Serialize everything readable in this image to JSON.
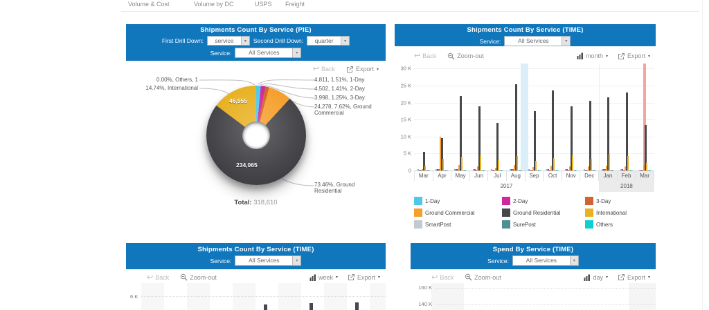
{
  "colors": {
    "header_blue": "#1177BD",
    "highlight_blue_band": "#D9EEF8",
    "highlight_red_band": "#F4A5A0"
  },
  "tabs": {
    "items": [
      {
        "label": "Volume & Cost"
      },
      {
        "label": "Volume by DC"
      },
      {
        "label": "USPS"
      },
      {
        "label": "Freight"
      }
    ]
  },
  "pie_panel": {
    "title": "Shipments Count By Service (PIE)",
    "first_drill_label": "First Drill Down:",
    "first_drill_value": "service",
    "second_drill_label": "Second Drill Down:",
    "second_drill_value": "quarter",
    "service_label": "Service:",
    "service_value": "All Services",
    "back_label": "Back",
    "export_label": "Export",
    "total_label": "Total:",
    "total_value": "318,610"
  },
  "time_panel": {
    "title": "Shipments Count By Service (TIME)",
    "service_label": "Service:",
    "service_value": "All Services",
    "back_label": "Back",
    "zoomout_label": "Zoom-out",
    "interval_label": "month",
    "export_label": "Export"
  },
  "week_panel": {
    "title": "Shipments Count By Service (TIME)",
    "service_label": "Service:",
    "service_value": "All Services",
    "back_label": "Back",
    "zoomout_label": "Zoom-out",
    "interval_label": "week",
    "export_label": "Export",
    "ytick": "6 K"
  },
  "spend_panel": {
    "title": "Spend By Service (TIME)",
    "service_label": "Service:",
    "service_value": "All Services",
    "back_label": "Back",
    "zoomout_label": "Zoom-out",
    "interval_label": "day",
    "export_label": "Export",
    "yticks": [
      "160 K",
      "140 K"
    ]
  },
  "chart_data": [
    {
      "id": "shipments_by_service_pie",
      "type": "pie",
      "title": "Shipments Count By Service (PIE)",
      "total_label": "Total:",
      "total": "318,610",
      "slices": [
        {
          "name": "1-Day",
          "value": 4811,
          "pct": 1.51,
          "color": "#4FC8E8"
        },
        {
          "name": "2-Day",
          "value": 4502,
          "pct": 1.41,
          "color": "#CE27A0"
        },
        {
          "name": "3-Day",
          "value": 3998,
          "pct": 1.25,
          "color": "#D2622F"
        },
        {
          "name": "Ground Commercial",
          "value": 24278,
          "pct": 7.62,
          "color": "#F5A02E"
        },
        {
          "name": "Ground Residential",
          "value": 234065,
          "pct": 73.46,
          "color": "#47474C",
          "label": "234,065"
        },
        {
          "name": "International",
          "value": 46955,
          "pct": 14.74,
          "color": "#E8B224",
          "label": "46,955"
        },
        {
          "name": "Others",
          "value": 1,
          "pct": 0.0,
          "color": "#0ED0CD"
        }
      ],
      "callouts_left": [
        "0.00%, Others, 1",
        "14.74%, International"
      ],
      "callouts_right": [
        "4,811, 1.51%, 1-Day",
        "4,502, 1.41%, 2-Day",
        "3,998, 1.25%, 3-Day",
        "24,278, 7.62%, Ground Commercial"
      ],
      "callout_bottom": "73.46%, Ground Residential"
    },
    {
      "id": "shipments_by_service_time",
      "type": "bar",
      "title": "Shipments Count By Service (TIME)",
      "categories": [
        "Mar",
        "Apr",
        "May",
        "Jun",
        "Jul",
        "Aug",
        "Sep",
        "Oct",
        "Nov",
        "Dec",
        "Jan",
        "Feb",
        "Mar"
      ],
      "year_groups": [
        {
          "label": "2017",
          "span": [
            0,
            9
          ]
        },
        {
          "label": "2018",
          "span": [
            10,
            12
          ]
        }
      ],
      "ylim": [
        0,
        31500
      ],
      "yticks": [
        "30 K",
        "25 K",
        "20 K",
        "15 K",
        "10 K",
        "5 K",
        "0"
      ],
      "ytick_values": [
        30000,
        25000,
        20000,
        15000,
        10000,
        5000,
        0
      ],
      "grid": true,
      "legend_position": "bottom",
      "series": [
        {
          "name": "1-Day",
          "color": "#4FC8E8",
          "values": [
            400,
            500,
            500,
            400,
            400,
            500,
            400,
            400,
            400,
            400,
            500,
            400,
            300
          ]
        },
        {
          "name": "2-Day",
          "color": "#CE27A0",
          "values": [
            300,
            400,
            400,
            400,
            300,
            400,
            300,
            400,
            400,
            300,
            400,
            400,
            300
          ]
        },
        {
          "name": "3-Day",
          "color": "#D2622F",
          "values": [
            300,
            400,
            400,
            300,
            300,
            400,
            300,
            300,
            300,
            300,
            400,
            300,
            300
          ]
        },
        {
          "name": "Ground Commercial",
          "color": "#F5A02E",
          "values": [
            500,
            10000,
            1600,
            1300,
            900,
            1600,
            1100,
            1400,
            1300,
            1200,
            1400,
            1300,
            1600
          ]
        },
        {
          "name": "Ground Residential",
          "color": "#47474C",
          "values": [
            5500,
            9500,
            22000,
            19000,
            14000,
            25500,
            17500,
            23500,
            19000,
            20500,
            21500,
            23000,
            13500
          ]
        },
        {
          "name": "International",
          "color": "#E8B224",
          "values": [
            1500,
            3500,
            4000,
            4300,
            3000,
            4200,
            2800,
            3700,
            4400,
            3500,
            4800,
            4300,
            2300
          ]
        },
        {
          "name": "SmartPost",
          "color": "#C3C9D0",
          "values": [
            200,
            200,
            200,
            200,
            200,
            200,
            200,
            200,
            200,
            200,
            200,
            200,
            200
          ]
        },
        {
          "name": "SurePost",
          "color": "#4D8F94",
          "values": [
            200,
            200,
            200,
            200,
            200,
            200,
            200,
            200,
            200,
            200,
            200,
            200,
            200
          ]
        },
        {
          "name": "Others",
          "color": "#0ED0CD",
          "values": [
            100,
            100,
            100,
            100,
            100,
            100,
            100,
            100,
            100,
            100,
            100,
            100,
            100
          ]
        }
      ],
      "highlights": [
        {
          "position": 5.96,
          "width": 11,
          "color": "#D9EEF8"
        },
        {
          "position": 12.48,
          "width": 4,
          "color": "#F4A5A0"
        }
      ]
    },
    {
      "id": "shipments_by_service_time_week",
      "type": "bar",
      "title": "Shipments Count By Service (TIME)",
      "partial": true,
      "visible_yticks": [
        "6 K"
      ],
      "visible_bar_stubs": [
        {
          "frac": 0.5,
          "top": 31
        },
        {
          "frac": 0.688,
          "top": 29
        },
        {
          "frac": 0.875,
          "top": 28
        }
      ]
    },
    {
      "id": "spend_by_service_time_day",
      "type": "bar",
      "title": "Spend By Service (TIME)",
      "partial": true,
      "visible_yticks": [
        "160 K",
        "140 K"
      ]
    }
  ]
}
